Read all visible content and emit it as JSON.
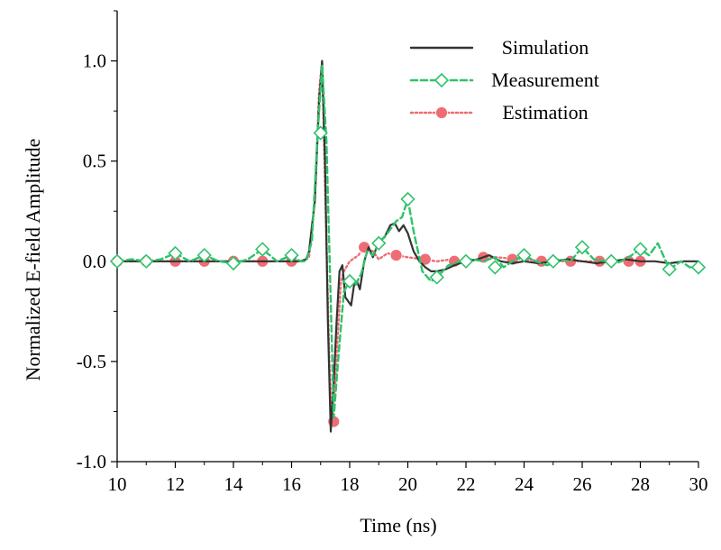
{
  "chart_data": {
    "type": "line",
    "title": "",
    "xlabel": "Time (ns)",
    "ylabel": "Normalized E-field Amplitude",
    "xlim": [
      10,
      30
    ],
    "ylim": [
      -1.0,
      1.25
    ],
    "xticks": [
      10,
      12,
      14,
      16,
      18,
      20,
      22,
      24,
      26,
      28,
      30
    ],
    "xtick_labels": [
      "10",
      "12",
      "14",
      "16",
      "18",
      "20",
      "22",
      "24",
      "26",
      "28",
      "30"
    ],
    "yticks": [
      -1.0,
      -0.5,
      0.0,
      0.5,
      1.0
    ],
    "ytick_labels": [
      "-1.0",
      "-0.5",
      "0.0",
      "0.5",
      "1.0"
    ],
    "legend_position": "top-right",
    "series": [
      {
        "name": "Simulation",
        "color": "#333333",
        "line_style": "solid",
        "marker": "none",
        "x": [
          10,
          14,
          16,
          16.3,
          16.5,
          16.6,
          16.8,
          16.95,
          17.05,
          17.15,
          17.25,
          17.35,
          17.45,
          17.55,
          17.65,
          17.75,
          17.85,
          17.95,
          18.05,
          18.15,
          18.25,
          18.35,
          18.5,
          18.65,
          18.8,
          19.0,
          19.2,
          19.4,
          19.55,
          19.7,
          19.85,
          20.0,
          20.2,
          20.4,
          20.6,
          20.8,
          21.0,
          21.3,
          21.6,
          22.0,
          22.4,
          22.8,
          23.2,
          23.6,
          24.0,
          24.5,
          25.0,
          25.5,
          26.0,
          26.5,
          27.0,
          27.5,
          28.0,
          28.5,
          29.0,
          29.5,
          30.0
        ],
        "y": [
          0,
          0,
          0,
          0,
          0.01,
          0.05,
          0.3,
          0.8,
          1.0,
          0.5,
          -0.3,
          -0.85,
          -0.6,
          -0.3,
          -0.05,
          -0.02,
          -0.18,
          -0.2,
          -0.22,
          -0.12,
          -0.1,
          -0.14,
          0.0,
          0.07,
          0.02,
          0.1,
          0.12,
          0.18,
          0.19,
          0.15,
          0.18,
          0.14,
          0.05,
          0.0,
          -0.03,
          -0.05,
          -0.05,
          -0.04,
          -0.02,
          0.0,
          0.01,
          0.03,
          0.0,
          -0.01,
          0.0,
          -0.01,
          0.0,
          0.01,
          0.0,
          -0.01,
          0.0,
          0.01,
          0.0,
          0.0,
          -0.01,
          0.0,
          0.0
        ]
      },
      {
        "name": "Measurement",
        "color": "#2ec36a",
        "line_style": "dashed",
        "marker": "diamond-open",
        "x": [
          10,
          10.5,
          11,
          11.5,
          12,
          12.5,
          13,
          13.5,
          14,
          14.5,
          15,
          15.5,
          16,
          16.3,
          16.5,
          16.7,
          16.9,
          17.05,
          17.2,
          17.35,
          17.45,
          17.6,
          17.8,
          18.0,
          18.2,
          18.4,
          18.6,
          18.8,
          19.0,
          19.3,
          19.6,
          19.8,
          20.0,
          20.2,
          20.5,
          20.8,
          21.0,
          21.4,
          21.8,
          22.2,
          22.6,
          23.0,
          23.3,
          23.6,
          24.0,
          24.4,
          24.8,
          25.2,
          25.6,
          26.0,
          26.4,
          26.8,
          27.2,
          27.6,
          28.0,
          28.3,
          28.6,
          29.0,
          29.4,
          29.7,
          30.0
        ],
        "y": [
          0,
          0.01,
          0,
          0.01,
          0.04,
          0.0,
          0.03,
          0.0,
          -0.01,
          0.01,
          0.06,
          0.0,
          0.03,
          0.0,
          0.0,
          0.1,
          0.64,
          0.98,
          0.6,
          -0.2,
          -0.78,
          -0.5,
          -0.15,
          -0.1,
          -0.12,
          -0.06,
          0.05,
          0.03,
          0.09,
          0.14,
          0.2,
          0.22,
          0.31,
          0.15,
          -0.05,
          -0.1,
          -0.08,
          -0.02,
          0.0,
          0.01,
          0.0,
          0.02,
          -0.03,
          0.0,
          0.03,
          0.0,
          -0.02,
          0.01,
          0.0,
          0.07,
          0.01,
          0.0,
          -0.01,
          0.02,
          0.06,
          0.03,
          0.09,
          -0.04,
          0.0,
          -0.03,
          -0.03
        ],
        "marker_x": [
          10,
          11,
          12,
          13,
          14,
          15,
          16,
          17,
          18,
          19,
          20,
          21,
          22,
          23,
          24,
          25,
          26,
          27,
          28,
          29,
          30
        ],
        "marker_y": [
          0.0,
          0.0,
          0.04,
          0.03,
          -0.01,
          0.06,
          0.03,
          0.64,
          -0.1,
          0.09,
          0.31,
          -0.08,
          0.0,
          -0.03,
          0.03,
          0.0,
          0.07,
          0.0,
          0.06,
          -0.04,
          -0.03
        ]
      },
      {
        "name": "Estimation",
        "color": "#ee6d74",
        "line_style": "dotted",
        "marker": "circle-filled",
        "x": [
          10,
          11,
          12,
          13,
          14,
          15,
          16,
          16.4,
          16.6,
          16.8,
          16.95,
          17.05,
          17.15,
          17.3,
          17.4,
          17.5,
          17.6,
          17.7,
          17.8,
          18.0,
          18.3,
          18.5,
          18.8,
          19.0,
          19.3,
          19.6,
          20.0,
          20.5,
          21.0,
          21.5,
          22.0,
          22.5,
          23.0,
          24.0,
          25.0,
          26.0,
          27.0,
          28.0
        ],
        "y": [
          0,
          0,
          0,
          0,
          0,
          0,
          0,
          0.0,
          0.02,
          0.3,
          0.85,
          1.0,
          0.4,
          -0.5,
          -0.8,
          -0.6,
          -0.35,
          -0.1,
          -0.05,
          0.0,
          0.03,
          0.07,
          0.05,
          0.01,
          0.04,
          0.03,
          0.02,
          0.01,
          0.0,
          0.01,
          0.0,
          0.01,
          0.02,
          0.01,
          0.0,
          0.0,
          0.0,
          0.0
        ],
        "marker_x": [
          10,
          11,
          12,
          13,
          14,
          15,
          16,
          17.45,
          18.5,
          19.6,
          20.6,
          21.6,
          22.6,
          23.6,
          24.6,
          25.6,
          26.6,
          27.6,
          28.0
        ],
        "marker_y": [
          0.0,
          0.0,
          0.0,
          0.0,
          0.0,
          0.0,
          0.0,
          -0.8,
          0.07,
          0.03,
          0.01,
          0.0,
          0.02,
          0.01,
          0.0,
          0.0,
          0.0,
          0.0,
          0.0
        ]
      }
    ]
  }
}
